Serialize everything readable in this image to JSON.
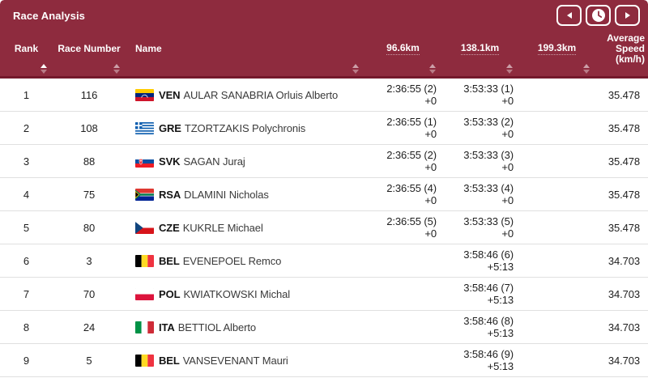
{
  "title": "Race Analysis",
  "colors": {
    "header_bg": "#8E2B3E",
    "header_divider": "#74182B",
    "row_divider": "#E0E0E0",
    "text": "#1E1E1E",
    "accent_white": "#FFFFFF"
  },
  "toolbar": {
    "prev_button": {
      "icon": "chevron-left-icon"
    },
    "time_button": {
      "icon": "clock-icon"
    },
    "next_button": {
      "icon": "chevron-right-icon"
    }
  },
  "table": {
    "columns": [
      {
        "id": "rank",
        "label": "Rank",
        "sortable": true,
        "sort": "asc",
        "dotted": false
      },
      {
        "id": "num",
        "label": "Race Number",
        "sortable": true,
        "sort": null,
        "dotted": false
      },
      {
        "id": "name",
        "label": "Name",
        "sortable": true,
        "sort": null,
        "dotted": false
      },
      {
        "id": "km1",
        "label": "96.6km",
        "sortable": true,
        "sort": null,
        "dotted": true
      },
      {
        "id": "km2",
        "label": "138.1km",
        "sortable": true,
        "sort": null,
        "dotted": true
      },
      {
        "id": "km3",
        "label": "199.3km",
        "sortable": true,
        "sort": null,
        "dotted": true
      },
      {
        "id": "avg",
        "label": "Average Speed (km/h)",
        "sortable": false,
        "sort": null,
        "dotted": false
      }
    ],
    "rows": [
      {
        "rank": "1",
        "num": "116",
        "noc": "VEN",
        "name": "AULAR SANABRIA Orluis Alberto",
        "km1": {
          "time": "2:36:55 (2)",
          "gap": "+0"
        },
        "km2": {
          "time": "3:53:33 (1)",
          "gap": "+0"
        },
        "km3": null,
        "avg": "35.478"
      },
      {
        "rank": "2",
        "num": "108",
        "noc": "GRE",
        "name": "TZORTZAKIS Polychronis",
        "km1": {
          "time": "2:36:55 (1)",
          "gap": "+0"
        },
        "km2": {
          "time": "3:53:33 (2)",
          "gap": "+0"
        },
        "km3": null,
        "avg": "35.478"
      },
      {
        "rank": "3",
        "num": "88",
        "noc": "SVK",
        "name": "SAGAN Juraj",
        "km1": {
          "time": "2:36:55 (2)",
          "gap": "+0"
        },
        "km2": {
          "time": "3:53:33 (3)",
          "gap": "+0"
        },
        "km3": null,
        "avg": "35.478"
      },
      {
        "rank": "4",
        "num": "75",
        "noc": "RSA",
        "name": "DLAMINI Nicholas",
        "km1": {
          "time": "2:36:55 (4)",
          "gap": "+0"
        },
        "km2": {
          "time": "3:53:33 (4)",
          "gap": "+0"
        },
        "km3": null,
        "avg": "35.478"
      },
      {
        "rank": "5",
        "num": "80",
        "noc": "CZE",
        "name": "KUKRLE Michael",
        "km1": {
          "time": "2:36:55 (5)",
          "gap": "+0"
        },
        "km2": {
          "time": "3:53:33 (5)",
          "gap": "+0"
        },
        "km3": null,
        "avg": "35.478"
      },
      {
        "rank": "6",
        "num": "3",
        "noc": "BEL",
        "name": "EVENEPOEL Remco",
        "km1": null,
        "km2": {
          "time": "3:58:46 (6)",
          "gap": "+5:13"
        },
        "km3": null,
        "avg": "34.703"
      },
      {
        "rank": "7",
        "num": "70",
        "noc": "POL",
        "name": "KWIATKOWSKI Michal",
        "km1": null,
        "km2": {
          "time": "3:58:46 (7)",
          "gap": "+5:13"
        },
        "km3": null,
        "avg": "34.703"
      },
      {
        "rank": "8",
        "num": "24",
        "noc": "ITA",
        "name": "BETTIOL Alberto",
        "km1": null,
        "km2": {
          "time": "3:58:46 (8)",
          "gap": "+5:13"
        },
        "km3": null,
        "avg": "34.703"
      },
      {
        "rank": "9",
        "num": "5",
        "noc": "BEL",
        "name": "VANSEVENANT Mauri",
        "km1": null,
        "km2": {
          "time": "3:58:46 (9)",
          "gap": "+5:13"
        },
        "km3": null,
        "avg": "34.703"
      }
    ]
  }
}
